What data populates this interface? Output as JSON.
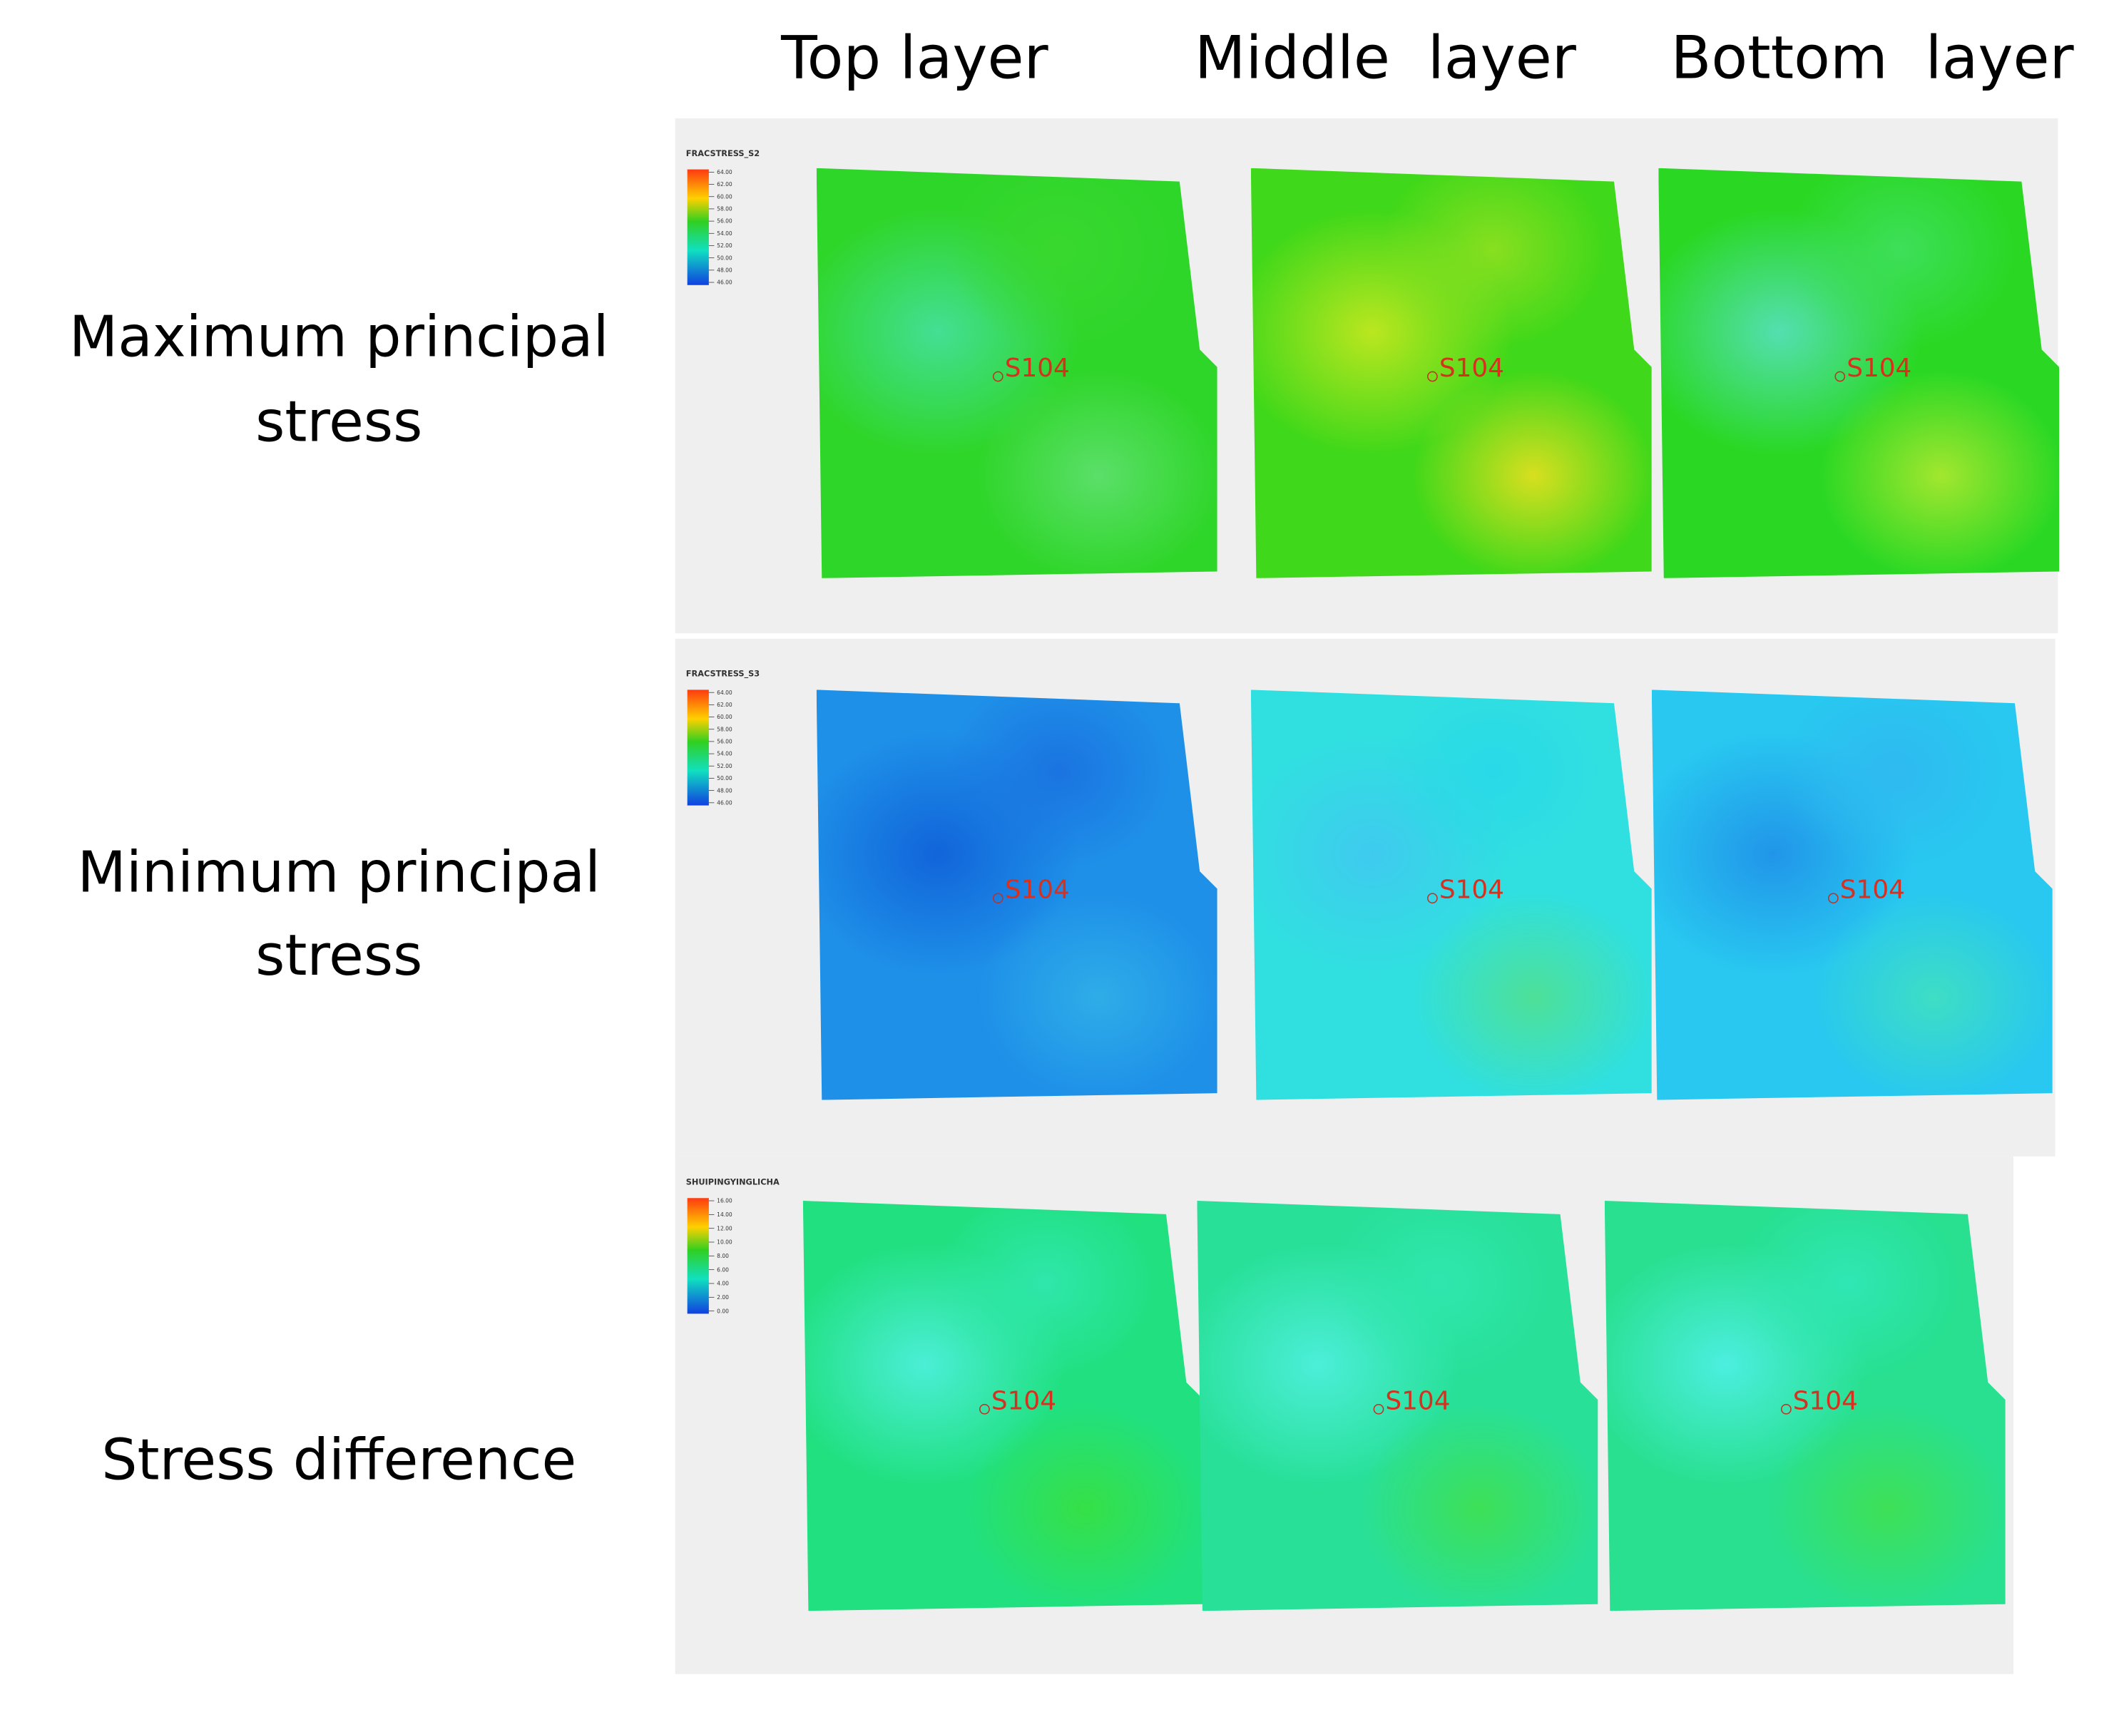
{
  "columns": [
    "Top layer",
    "Middle  layer",
    "Bottom  layer"
  ],
  "rows": [
    {
      "label_lines": [
        "Maximum principal",
        "stress"
      ],
      "legend": {
        "title": "FRACSTRESS_S2",
        "ticks": [
          "64.00",
          "62.00",
          "60.00",
          "58.00",
          "56.00",
          "54.00",
          "52.00",
          "50.00",
          "48.00",
          "46.00"
        ]
      },
      "panels": [
        {
          "well": "S104"
        },
        {
          "well": "S104"
        },
        {
          "well": "S104"
        }
      ]
    },
    {
      "label_lines": [
        "Minimum principal",
        "stress"
      ],
      "legend": {
        "title": "FRACSTRESS_S3",
        "ticks": [
          "64.00",
          "62.00",
          "60.00",
          "58.00",
          "56.00",
          "54.00",
          "52.00",
          "50.00",
          "48.00",
          "46.00"
        ]
      },
      "panels": [
        {
          "well": "S104"
        },
        {
          "well": "S104"
        },
        {
          "well": "S104"
        }
      ]
    },
    {
      "label_lines": [
        "Stress difference"
      ],
      "legend": {
        "title": "SHUIPINGYINGLICHA",
        "ticks": [
          "16.00",
          "14.00",
          "12.00",
          "10.00",
          "8.00",
          "6.00",
          "4.00",
          "2.00",
          "0.00"
        ]
      },
      "panels": [
        {
          "well": "S104"
        },
        {
          "well": "S104"
        },
        {
          "well": "S104"
        }
      ]
    }
  ]
}
